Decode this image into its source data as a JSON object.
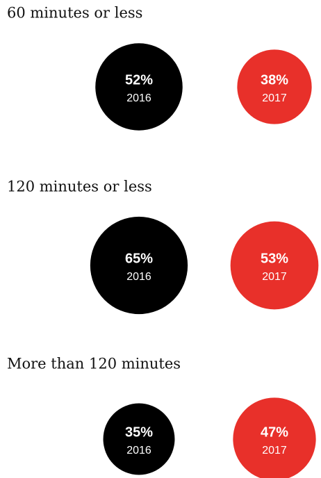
{
  "chart_data": [
    {
      "type": "bubble",
      "title": "60 minutes or less",
      "categories": [
        "2016",
        "2017"
      ],
      "values": [
        52,
        38
      ],
      "value_labels": [
        "52%",
        "38%"
      ],
      "colors": [
        "#000000",
        "#e8302a"
      ]
    },
    {
      "type": "bubble",
      "title": "120 minutes or less",
      "categories": [
        "2016",
        "2017"
      ],
      "values": [
        65,
        53
      ],
      "value_labels": [
        "65%",
        "53%"
      ],
      "colors": [
        "#000000",
        "#e8302a"
      ]
    },
    {
      "type": "bubble",
      "title": "More than 120 minutes",
      "categories": [
        "2016",
        "2017"
      ],
      "values": [
        35,
        47
      ],
      "value_labels": [
        "35%",
        "47%"
      ],
      "colors": [
        "#000000",
        "#e8302a"
      ]
    }
  ]
}
